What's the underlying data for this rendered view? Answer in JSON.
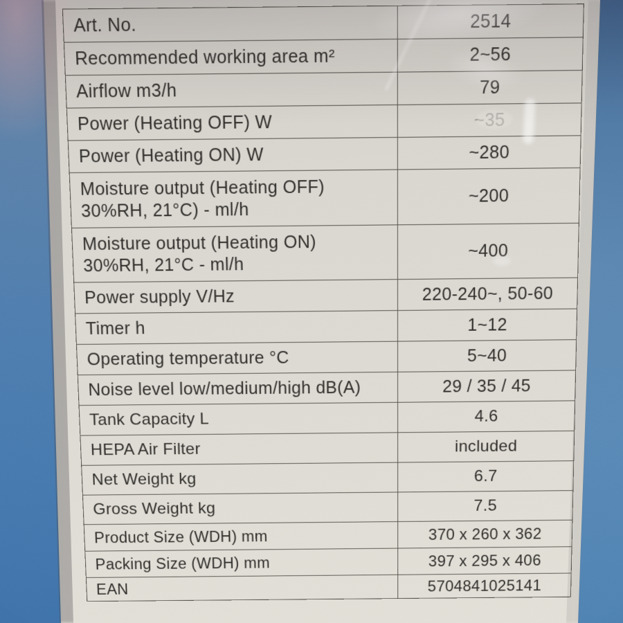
{
  "table": {
    "rows": [
      {
        "label": "Art. No.",
        "value": "2514"
      },
      {
        "label": "Recommended working area m²",
        "value": "2~56"
      },
      {
        "label": "Airflow m3/h",
        "value": "79"
      },
      {
        "label": "Power (Heating OFF) W",
        "value": "~35",
        "worn": true
      },
      {
        "label": "Power (Heating ON) W",
        "value": "~280"
      },
      {
        "label": "Moisture output (Heating OFF)\n30%RH, 21°C) - ml/h",
        "value": "~200"
      },
      {
        "label": "Moisture output (Heating ON)\n30%RH, 21°C - ml/h",
        "value": "~400"
      },
      {
        "label": "Power supply V/Hz",
        "value": "220-240~, 50-60"
      },
      {
        "label": "Timer h",
        "value": "1~12"
      },
      {
        "label": "Operating temperature °C",
        "value": "5~40"
      },
      {
        "label": "Noise level low/medium/high dB(A)",
        "value": "29 / 35 / 45"
      },
      {
        "label": "Tank Capacity L",
        "value": "4.6"
      },
      {
        "label": "HEPA Air Filter",
        "value": "included"
      },
      {
        "label": "Net Weight kg",
        "value": "6.7"
      },
      {
        "label": "Gross Weight kg",
        "value": "7.5"
      },
      {
        "label": "Product Size (WDH) mm",
        "value": "370 x 260 x 362"
      },
      {
        "label": "Packing Size (WDH) mm",
        "value": "397 x 295 x 406"
      },
      {
        "label": "EAN",
        "value": "5704841025141"
      }
    ]
  },
  "colors": {
    "label_background": "#dcd9d2",
    "table_line": "#524f49",
    "text": "#2f2d2a",
    "blue_left_top": "#8f8494",
    "blue_left_bottom": "#3e71a9",
    "blue_right_top": "#3f5f86",
    "blue_right_bottom": "#4e81b1"
  }
}
